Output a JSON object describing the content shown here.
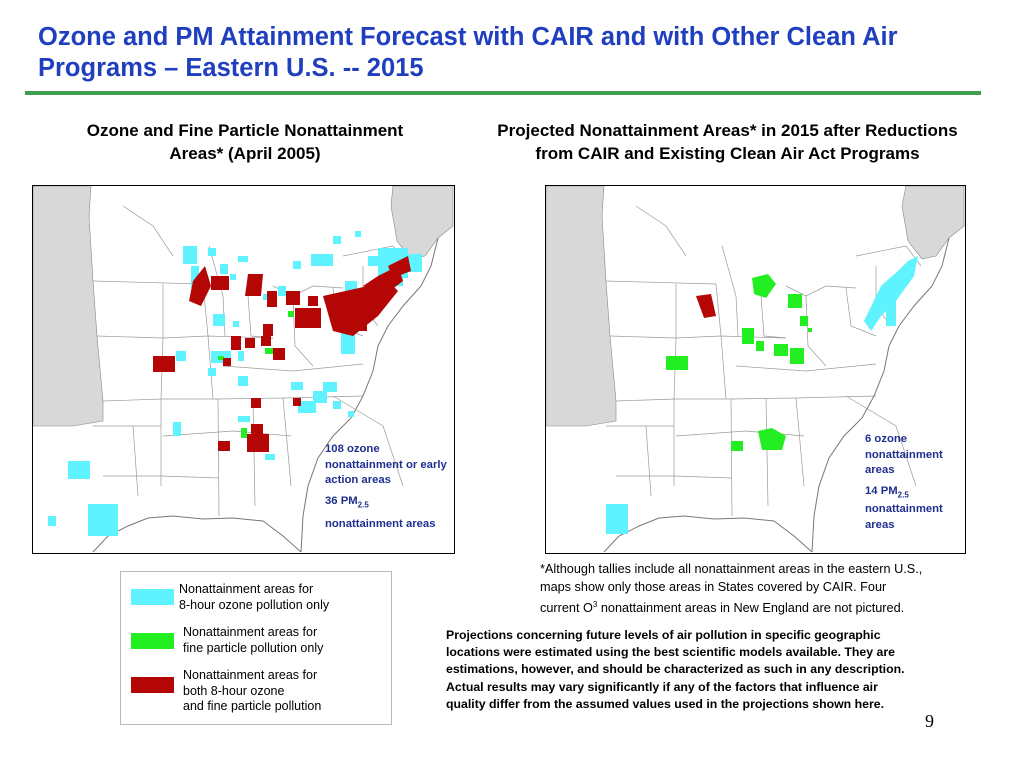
{
  "slide": {
    "title": "Ozone and PM Attainment Forecast with CAIR and with Other Clean Air Programs – Eastern U.S. -- 2015",
    "page_number": "9"
  },
  "left_map": {
    "heading_line1": "Ozone and Fine Particle Nonattainment",
    "heading_line2": "Areas* (April 2005)",
    "label_line1": "108 ozone",
    "label_line2": "nonattainment or early",
    "label_line3": "action areas",
    "label_pm_prefix": "36 PM",
    "label_pm_sub": "2.5",
    "label_line5": "nonattainment areas"
  },
  "right_map": {
    "heading_line1": "Projected Nonattainment Areas* in 2015 after Reductions",
    "heading_line2": "from CAIR and Existing Clean Air Act Programs",
    "label_line1": "6 ozone",
    "label_line2": "nonattainment",
    "label_line3": "areas",
    "label_pm_prefix": "14 PM",
    "label_pm_sub": "2.5",
    "label_line5": "nonattainment",
    "label_line6": "areas"
  },
  "legend": {
    "items": [
      {
        "line1": "Nonattainment areas for",
        "line2": "8-hour ozone pollution only",
        "line3": "",
        "color": "#5ff3ff"
      },
      {
        "line1": "Nonattainment areas for",
        "line2": "fine particle pollution only",
        "line3": "",
        "color": "#22ee22"
      },
      {
        "line1": "Nonattainment areas for",
        "line2": "both 8-hour ozone",
        "line3": "and fine particle pollution",
        "color": "#b50606"
      }
    ]
  },
  "footnote": {
    "line1": "*Although tallies include all nonattainment areas in the eastern U.S.,",
    "line2": "maps show only those areas in States covered by CAIR. Four",
    "line3_prefix": "current O",
    "line3_sup": "3",
    "line3_suffix": " nonattainment areas in New England are not pictured."
  },
  "disclaimer": {
    "line1": "Projections concerning future levels of air pollution in specific geographic",
    "line2": "locations were estimated using the best scientific models available.  They are",
    "line3": "estimations, however, and should be characterized as such in any description.",
    "line4": "Actual results may vary significantly if any of the factors that influence air",
    "line5": "quality differ from the assumed values used in the projections shown here."
  },
  "colors": {
    "ozone_only": "#5ff3ff",
    "pm_only": "#22ee22",
    "both": "#b50606",
    "non_cair_states": "#d8d8d8",
    "title": "#1f3fbf",
    "rule": "#3f9f4f"
  }
}
